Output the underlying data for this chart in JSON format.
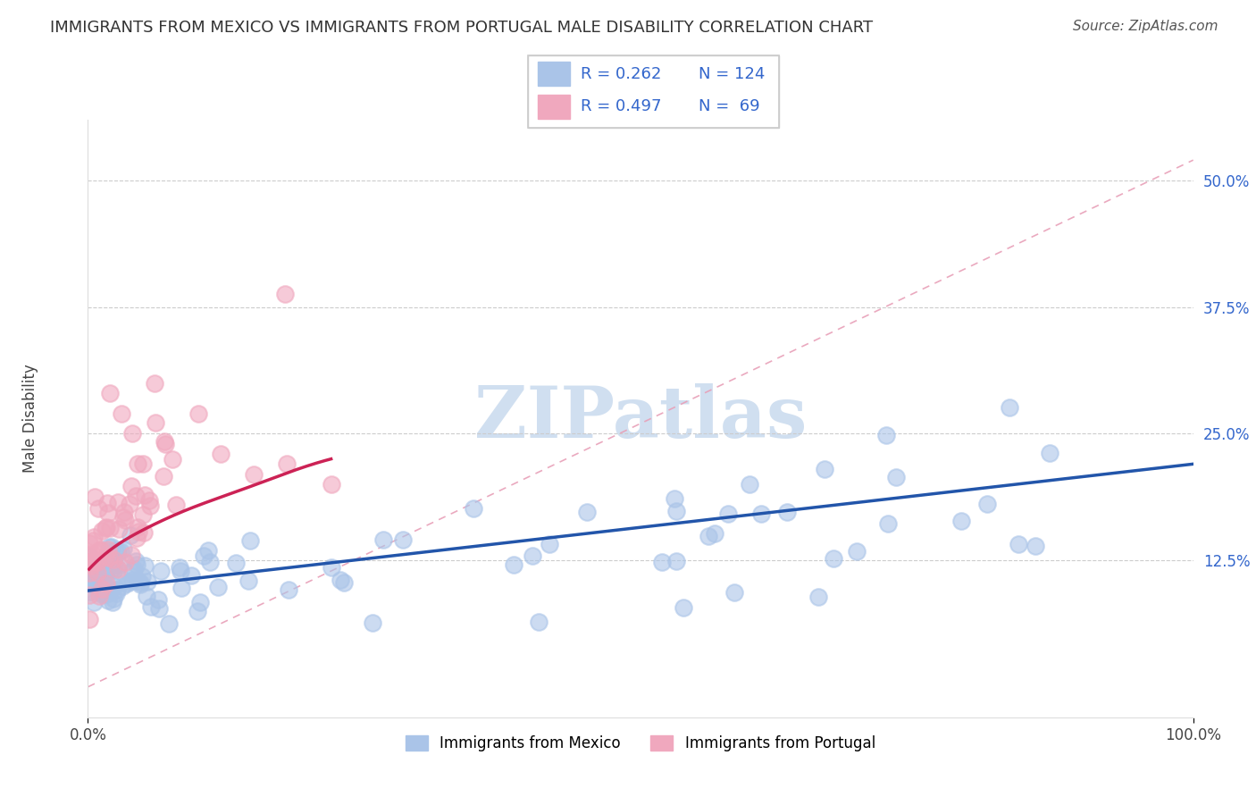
{
  "title": "IMMIGRANTS FROM MEXICO VS IMMIGRANTS FROM PORTUGAL MALE DISABILITY CORRELATION CHART",
  "source": "Source: ZipAtlas.com",
  "ylabel": "Male Disability",
  "xlim": [
    0.0,
    1.0
  ],
  "ylim": [
    -0.03,
    0.56
  ],
  "yticks": [
    0.0,
    0.125,
    0.25,
    0.375,
    0.5
  ],
  "ytick_labels": [
    "",
    "12.5%",
    "25.0%",
    "37.5%",
    "50.0%"
  ],
  "xtick_labels": [
    "0.0%",
    "100.0%"
  ],
  "mexico_color": "#aac4e8",
  "portugal_color": "#f0a8be",
  "mexico_line_color": "#2255aa",
  "portugal_line_color": "#cc2255",
  "ref_line_color": "#e8b0c0",
  "mexico_R": 0.262,
  "mexico_N": 124,
  "portugal_R": 0.497,
  "portugal_N": 69,
  "grid_color": "#cccccc",
  "background_color": "#ffffff",
  "title_fontsize": 13,
  "axis_label_fontsize": 12,
  "tick_fontsize": 12,
  "source_fontsize": 11,
  "legend_fontsize": 14,
  "ytick_color": "#3366cc",
  "watermark_color": "#d0dff0"
}
